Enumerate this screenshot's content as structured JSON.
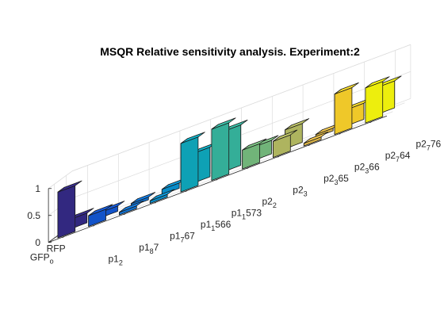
{
  "chart_data": {
    "type": "bar3",
    "title": "MSQR Relative sensitivity analysis. Experiment:2",
    "xlabel": "",
    "ylabel": "",
    "zlabel": "",
    "zlim": [
      0,
      1
    ],
    "z_ticks": [
      "0",
      "0.5",
      "1"
    ],
    "grid": true,
    "parameters": [
      {
        "main": "p1",
        "sub": "2"
      },
      {
        "main": "p1",
        "sub": "8",
        "rest": "7"
      },
      {
        "main": "p1",
        "sub": "7",
        "rest": "67"
      },
      {
        "main": "p1",
        "sub": "1",
        "rest": "566"
      },
      {
        "main": "p1",
        "sub": "1",
        "rest": "573"
      },
      {
        "main": "p2",
        "sub": "2"
      },
      {
        "main": "p2",
        "sub": "3"
      },
      {
        "main": "p2",
        "sub": "3",
        "rest": "65"
      },
      {
        "main": "p2",
        "sub": "3",
        "rest": "66"
      },
      {
        "main": "p2",
        "sub": "7",
        "rest": "64"
      },
      {
        "main": "p2",
        "sub": "7",
        "rest": "76"
      }
    ],
    "outputs": [
      {
        "main": "RFP",
        "sub": ""
      },
      {
        "main": "GFP",
        "sub": "o"
      }
    ],
    "series": [
      {
        "values": [
          0.18,
          0.1,
          0.05,
          0.1,
          0.55,
          0.75,
          0.25,
          0.35,
          0.05,
          0.3,
          0.5
        ]
      },
      {
        "values": [
          0.85,
          0.2,
          0.05,
          0.05,
          0.9,
          0.95,
          0.35,
          0.3,
          0.05,
          0.75,
          0.65
        ]
      }
    ]
  }
}
